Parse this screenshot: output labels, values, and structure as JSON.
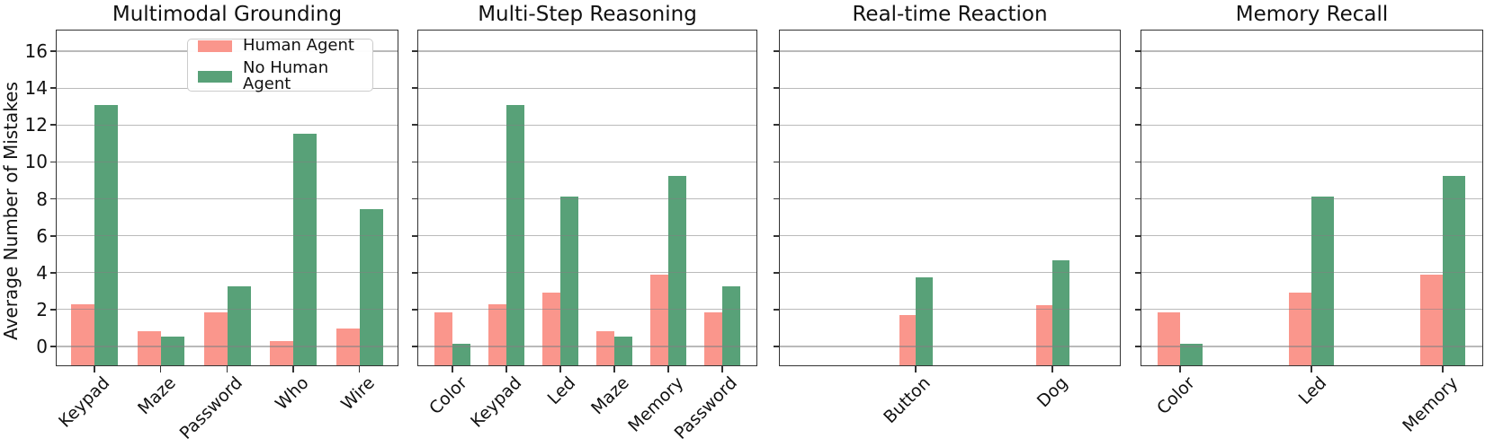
{
  "chart_data": {
    "type": "bar",
    "ylabel": "Average Number of Mistakes",
    "yticks": [
      "0",
      "2",
      "4",
      "6",
      "8",
      "10",
      "12",
      "14",
      "16"
    ],
    "ylim": [
      -1.1,
      17.2
    ],
    "grid": true,
    "legend": {
      "position": "upper-left-first-panel",
      "entries": [
        {
          "label": "Human Agent",
          "color": "#FA968C"
        },
        {
          "label": "No Human Agent",
          "color": "#58A178"
        }
      ]
    },
    "panels": [
      {
        "title": "Multimodal Grounding",
        "categories": [
          "Keypad",
          "Maze",
          "Password",
          "Who",
          "Wire"
        ],
        "series": [
          {
            "name": "Human Agent",
            "values": [
              2.3,
              0.85,
              1.85,
              0.3,
              0.95
            ]
          },
          {
            "name": "No Human Agent",
            "values": [
              13.1,
              0.55,
              3.25,
              11.55,
              7.45
            ]
          }
        ]
      },
      {
        "title": "Multi-Step Reasoning",
        "categories": [
          "Color",
          "Keypad",
          "Led",
          "Maze",
          "Memory",
          "Password"
        ],
        "series": [
          {
            "name": "Human Agent",
            "values": [
              1.85,
              2.3,
              2.9,
              0.85,
              3.9,
              1.85
            ]
          },
          {
            "name": "No Human Agent",
            "values": [
              0.15,
              13.1,
              8.1,
              0.55,
              9.25,
              3.25
            ]
          }
        ]
      },
      {
        "title": "Real-time Reaction",
        "categories": [
          "Button",
          "Dog"
        ],
        "series": [
          {
            "name": "Human Agent",
            "values": [
              1.7,
              2.25
            ]
          },
          {
            "name": "No Human Agent",
            "values": [
              3.75,
              4.65
            ]
          }
        ]
      },
      {
        "title": "Memory Recall",
        "categories": [
          "Color",
          "Led",
          "Memory"
        ],
        "series": [
          {
            "name": "Human Agent",
            "values": [
              1.85,
              2.9,
              3.9
            ]
          },
          {
            "name": "No Human Agent",
            "values": [
              0.15,
              8.1,
              9.25
            ]
          }
        ]
      }
    ],
    "grid_color": "#b0b0b0",
    "spine_color": "#333333"
  }
}
